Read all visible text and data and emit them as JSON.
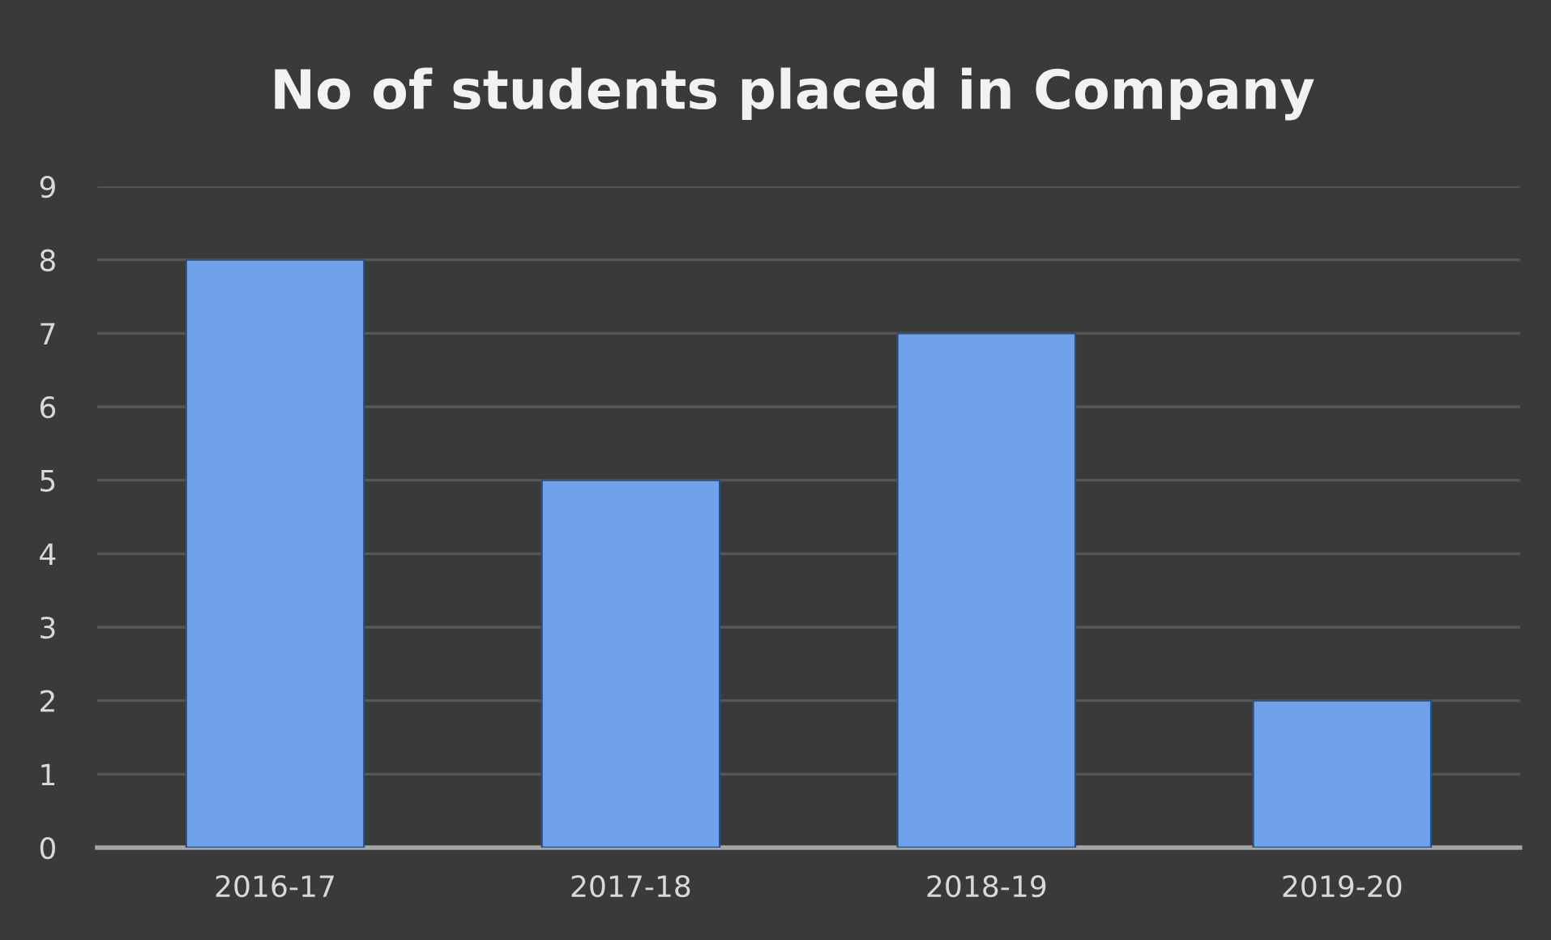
{
  "chart_data": {
    "type": "bar",
    "title": "No of students placed in Company",
    "categories": [
      "2016-17",
      "2017-18",
      "2018-19",
      "2019-20"
    ],
    "values": [
      8,
      5,
      7,
      2
    ],
    "color": "#6fa2ea",
    "ylim": [
      0,
      9
    ],
    "yticks": [
      0,
      1,
      2,
      3,
      4,
      5,
      6,
      7,
      8,
      9
    ],
    "grid": "y"
  }
}
